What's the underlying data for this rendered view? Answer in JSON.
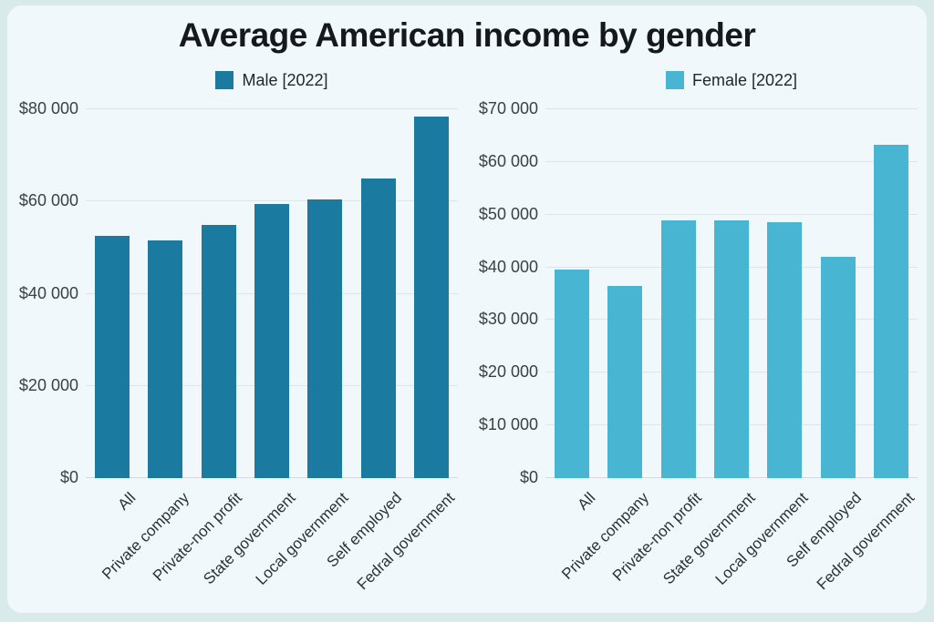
{
  "title": "Average American income by gender",
  "page": {
    "background_color": "#d8ebea",
    "card_color": "#f0f8fb"
  },
  "chart_data": [
    {
      "type": "bar",
      "legend": "Male [2022]",
      "color": "#1a7a9f",
      "grid": true,
      "legend_position": "top",
      "ylim": [
        0,
        80000
      ],
      "ymax": 80000,
      "yticks": [
        {
          "value": 0,
          "label": "$0"
        },
        {
          "value": 20000,
          "label": "$20 000"
        },
        {
          "value": 40000,
          "label": "$40 000"
        },
        {
          "value": 60000,
          "label": "$60 000"
        },
        {
          "value": 80000,
          "label": "$80 000"
        }
      ],
      "categories": [
        "All",
        "Private company",
        "Private-non profit",
        "State government",
        "Local government",
        "Self employed",
        "Fedral government"
      ],
      "values": [
        52500,
        51500,
        55000,
        59500,
        60500,
        65000,
        78500
      ]
    },
    {
      "type": "bar",
      "legend": "Female [2022]",
      "color": "#48b6d3",
      "grid": true,
      "legend_position": "top",
      "ylim": [
        0,
        70000
      ],
      "ymax": 70000,
      "yticks": [
        {
          "value": 0,
          "label": "$0"
        },
        {
          "value": 10000,
          "label": "$10 000"
        },
        {
          "value": 20000,
          "label": "$20 000"
        },
        {
          "value": 30000,
          "label": "$30 000"
        },
        {
          "value": 40000,
          "label": "$40 000"
        },
        {
          "value": 50000,
          "label": "$50 000"
        },
        {
          "value": 60000,
          "label": "$60 000"
        },
        {
          "value": 70000,
          "label": "$70 000"
        }
      ],
      "categories": [
        "All",
        "Private company",
        "Private-non profit",
        "State government",
        "Local government",
        "Self employed",
        "Fedral government"
      ],
      "values": [
        39600,
        36500,
        48900,
        48900,
        48500,
        42000,
        63200
      ]
    }
  ]
}
